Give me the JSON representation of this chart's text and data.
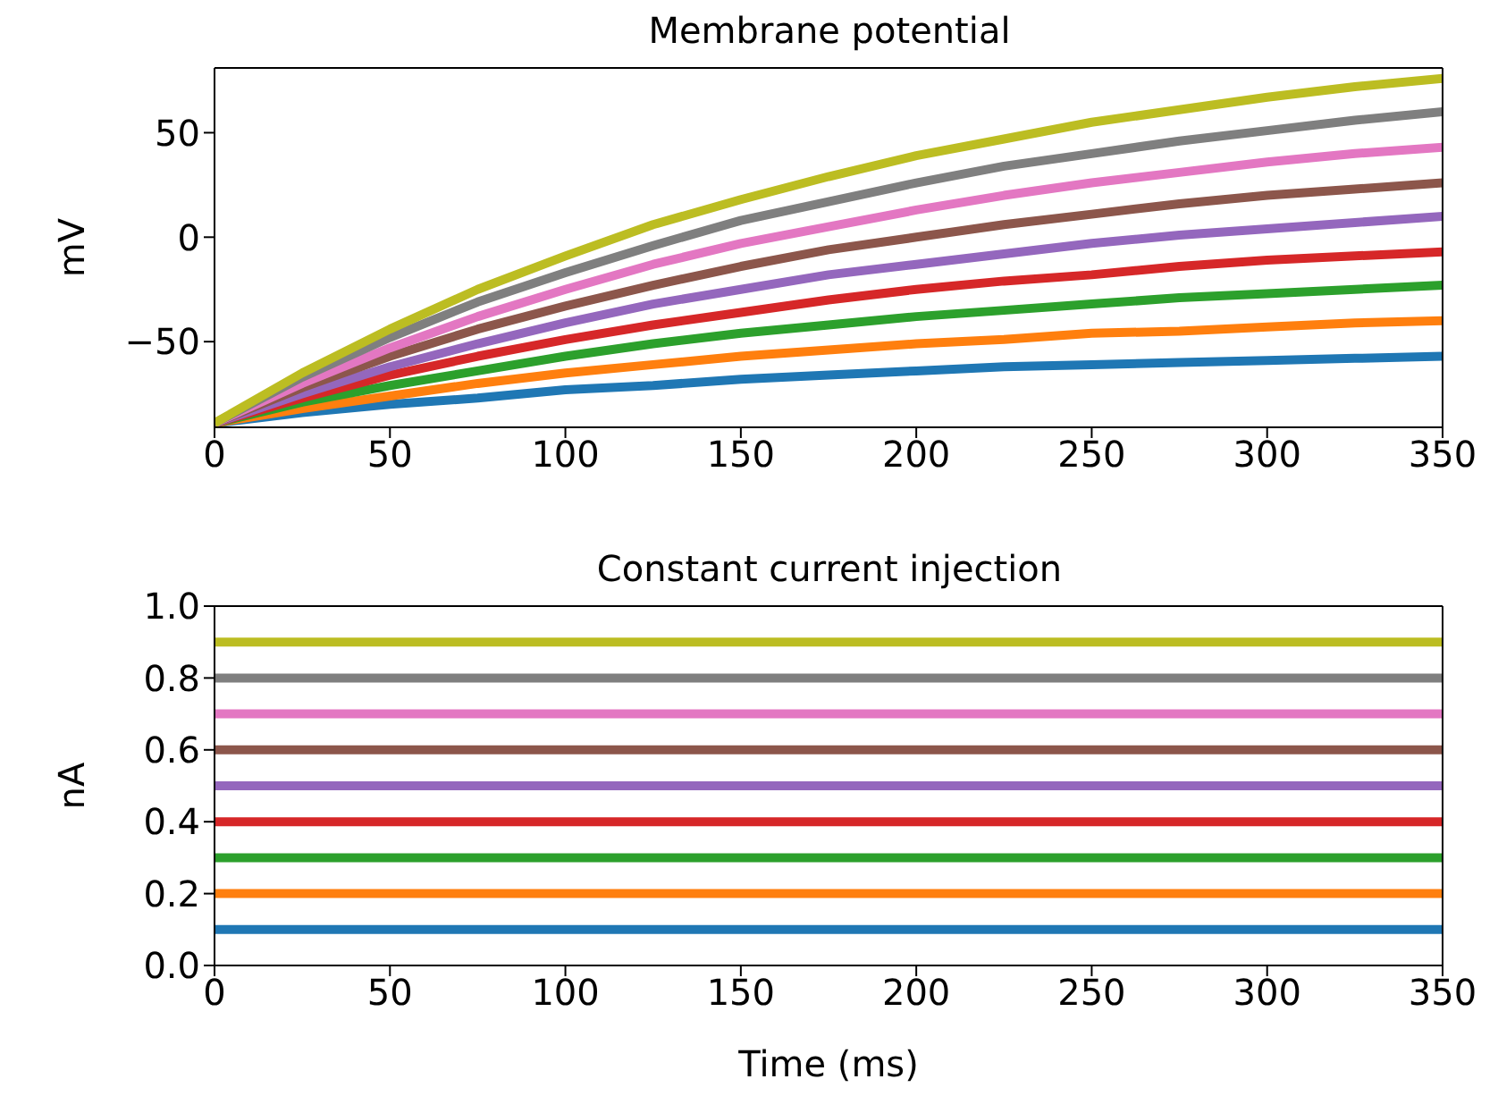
{
  "chart_data": [
    {
      "type": "line",
      "title": "Membrane potential",
      "ylabel": "mV",
      "x": [
        0,
        25,
        50,
        75,
        100,
        125,
        150,
        175,
        200,
        225,
        250,
        275,
        300,
        325,
        350
      ],
      "xlim": [
        0,
        350
      ],
      "xticks": [
        0,
        50,
        100,
        150,
        200,
        250,
        300,
        350
      ],
      "ylim": [
        -91,
        81
      ],
      "yticks": [
        -50,
        0,
        50
      ],
      "grid": false,
      "legend": false,
      "marker": "none",
      "line_style": "solid",
      "series": [
        {
          "color": "#1f77b4",
          "values": [
            -89,
            -84,
            -80,
            -77,
            -73,
            -71,
            -68,
            -66,
            -64,
            -62,
            -61,
            -60,
            -59,
            -58,
            -57
          ]
        },
        {
          "color": "#ff7f0e",
          "values": [
            -89,
            -82,
            -76,
            -70,
            -65,
            -61,
            -57,
            -54,
            -51,
            -49,
            -46,
            -45,
            -43,
            -41,
            -40
          ]
        },
        {
          "color": "#2ca02c",
          "values": [
            -89,
            -79,
            -71,
            -64,
            -57,
            -51,
            -46,
            -42,
            -38,
            -35,
            -32,
            -29,
            -27,
            -25,
            -23
          ]
        },
        {
          "color": "#d62728",
          "values": [
            -89,
            -77,
            -66,
            -57,
            -49,
            -42,
            -36,
            -30,
            -25,
            -21,
            -18,
            -14,
            -11,
            -9,
            -7
          ]
        },
        {
          "color": "#9467bd",
          "values": [
            -89,
            -75,
            -62,
            -51,
            -41,
            -32,
            -25,
            -18,
            -13,
            -8,
            -3,
            1,
            4,
            7,
            10
          ]
        },
        {
          "color": "#8c564b",
          "values": [
            -89,
            -72,
            -57,
            -44,
            -33,
            -23,
            -14,
            -6,
            0,
            6,
            11,
            16,
            20,
            23,
            26
          ]
        },
        {
          "color": "#e377c2",
          "values": [
            -89,
            -70,
            -53,
            -38,
            -25,
            -13,
            -3,
            5,
            13,
            20,
            26,
            31,
            36,
            40,
            43
          ]
        },
        {
          "color": "#7f7f7f",
          "values": [
            -89,
            -67,
            -48,
            -31,
            -17,
            -4,
            8,
            17,
            26,
            34,
            40,
            46,
            51,
            56,
            60
          ]
        },
        {
          "color": "#bcbd22",
          "values": [
            -89,
            -65,
            -44,
            -25,
            -9,
            6,
            18,
            29,
            39,
            47,
            55,
            61,
            67,
            72,
            76
          ]
        }
      ]
    },
    {
      "type": "line",
      "title": "Constant current injection",
      "ylabel": "nA",
      "xlabel": "Time (ms)",
      "x": [
        0,
        350
      ],
      "xlim": [
        0,
        350
      ],
      "xticks": [
        0,
        50,
        100,
        150,
        200,
        250,
        300,
        350
      ],
      "ylim": [
        0,
        1
      ],
      "yticks": [
        {
          "value": 0,
          "label": "0.0"
        },
        {
          "value": 0.2,
          "label": "0.2"
        },
        {
          "value": 0.4,
          "label": "0.4"
        },
        {
          "value": 0.6,
          "label": "0.6"
        },
        {
          "value": 0.8,
          "label": "0.8"
        },
        {
          "value": 1,
          "label": "1.0"
        }
      ],
      "grid": false,
      "legend": false,
      "marker": "none",
      "line_style": "solid",
      "series": [
        {
          "color": "#1f77b4",
          "values": [
            0.1,
            0.1
          ]
        },
        {
          "color": "#ff7f0e",
          "values": [
            0.2,
            0.2
          ]
        },
        {
          "color": "#2ca02c",
          "values": [
            0.3,
            0.3
          ]
        },
        {
          "color": "#d62728",
          "values": [
            0.4,
            0.4
          ]
        },
        {
          "color": "#9467bd",
          "values": [
            0.5,
            0.5
          ]
        },
        {
          "color": "#8c564b",
          "values": [
            0.6,
            0.6
          ]
        },
        {
          "color": "#e377c2",
          "values": [
            0.7,
            0.7
          ]
        },
        {
          "color": "#7f7f7f",
          "values": [
            0.8,
            0.8
          ]
        },
        {
          "color": "#bcbd22",
          "values": [
            0.9,
            0.9
          ]
        }
      ]
    }
  ]
}
